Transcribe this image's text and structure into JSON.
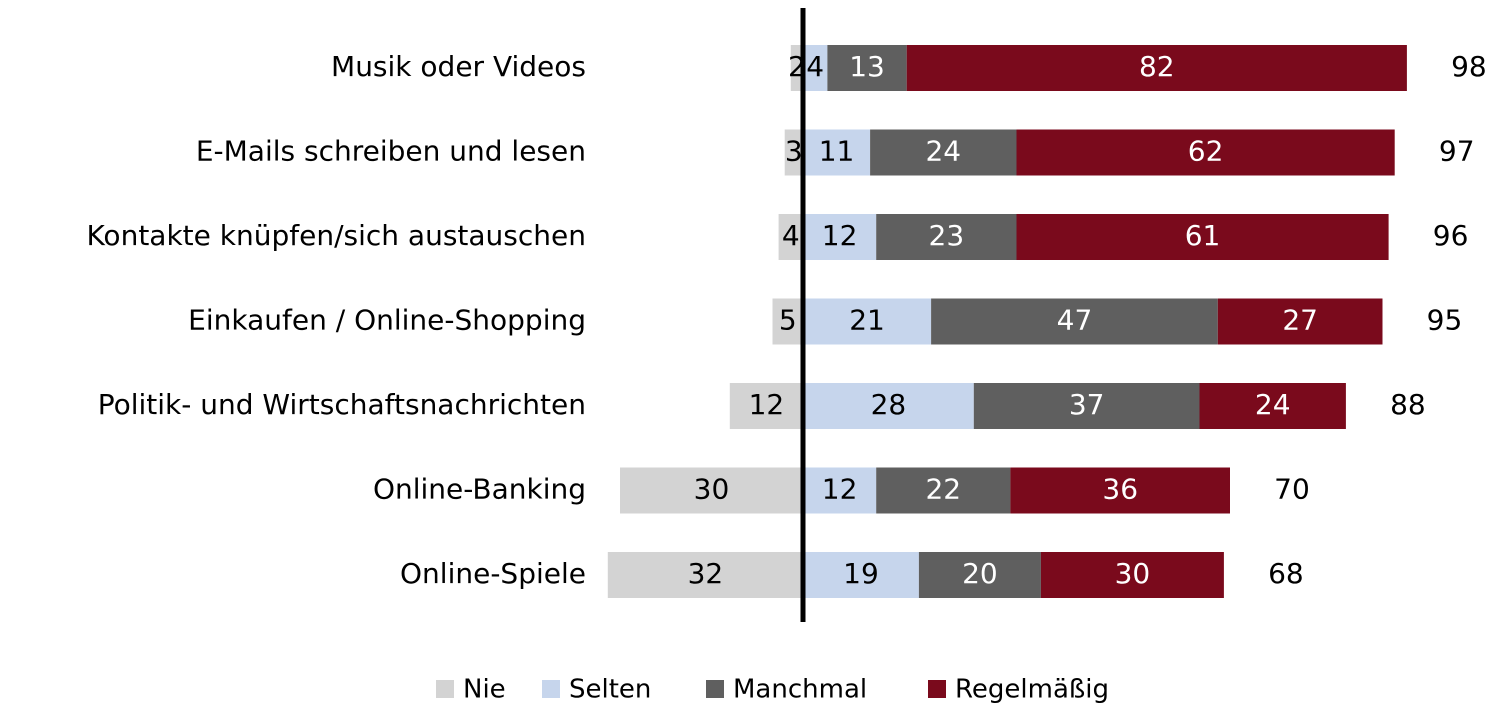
{
  "chart_data": {
    "type": "diverging-bar",
    "categories": [
      "Musik oder Videos",
      "E-Mails schreiben und lesen",
      "Kontakte knüpfen/sich austauschen",
      "Einkaufen / Online-Shopping",
      "Politik- und Wirtschaftsnachrichten",
      "Online-Banking",
      "Online-Spiele"
    ],
    "series": [
      {
        "name": "Nie",
        "color": "#d3d3d3",
        "text_color": "#000000",
        "direction": "left",
        "values": [
          2,
          3,
          4,
          5,
          12,
          30,
          32
        ]
      },
      {
        "name": "Selten",
        "color": "#c6d5ec",
        "text_color": "#000000",
        "values": [
          4,
          11,
          12,
          21,
          28,
          12,
          19
        ]
      },
      {
        "name": "Manchmal",
        "color": "#5f5f5f",
        "text_color": "#ffffff",
        "values": [
          13,
          24,
          23,
          47,
          37,
          22,
          20
        ]
      },
      {
        "name": "Regelmäßig",
        "color": "#7a0a1c",
        "text_color": "#ffffff",
        "values": [
          82,
          62,
          61,
          27,
          24,
          36,
          30
        ]
      }
    ],
    "totals": [
      98,
      97,
      96,
      95,
      88,
      70,
      68
    ],
    "legend": "bottom"
  }
}
